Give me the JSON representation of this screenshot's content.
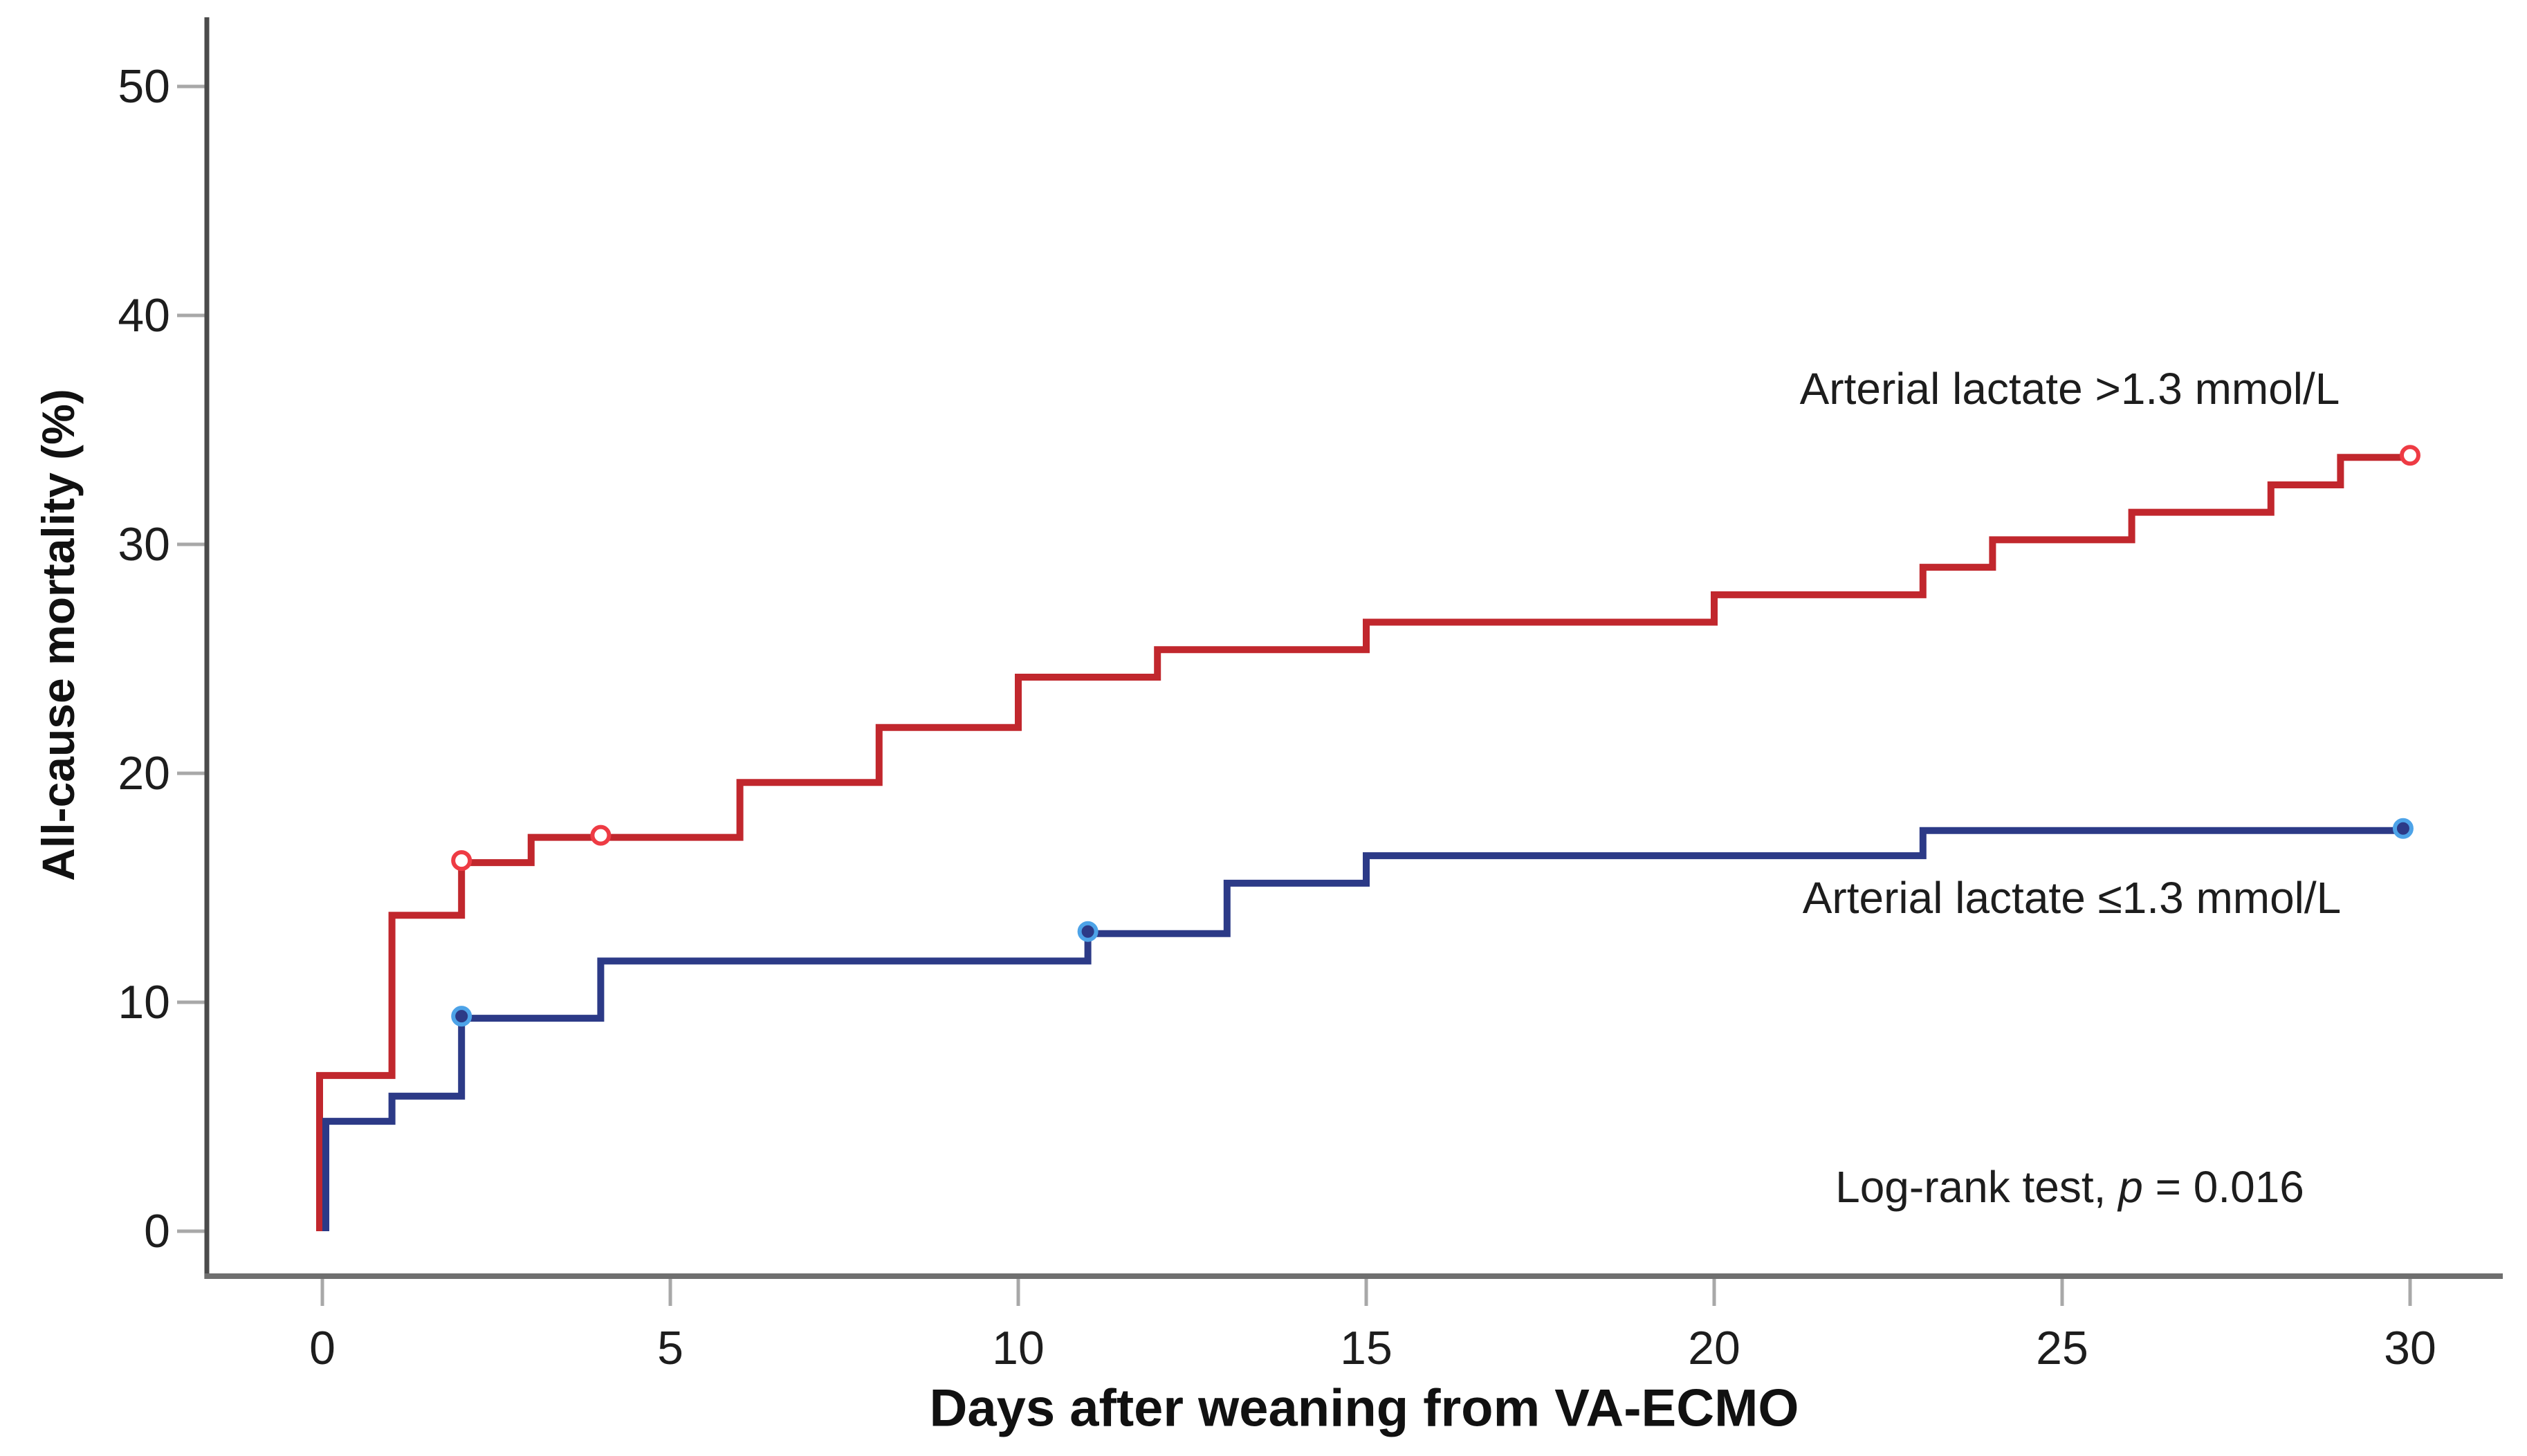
{
  "figure": {
    "background": "#ffffff",
    "text_color": "#1d1d1d",
    "axis_line_color": "#4b4b4b",
    "baseline_color": "#6f6f6f",
    "tick_color": "#a8a8a8"
  },
  "chart_data": {
    "type": "line",
    "subtype": "kaplan-meier-step",
    "title": "",
    "xlabel": "Days after weaning from VA-ECMO",
    "ylabel": "All-cause mortality (%)",
    "x_ticks": [
      "0",
      "5",
      "10",
      "15",
      "20",
      "25",
      "30"
    ],
    "x_tick_values": [
      0,
      5,
      10,
      15,
      20,
      25,
      30
    ],
    "y_ticks": [
      "0",
      "10",
      "20",
      "30",
      "40",
      "50"
    ],
    "y_tick_values": [
      0,
      10,
      20,
      30,
      40,
      50
    ],
    "xlim": [
      -1.7,
      31.7
    ],
    "ylim": [
      -2,
      52.7
    ],
    "grid": false,
    "legend_position": "inline-annotations",
    "series": [
      {
        "name": "Arterial lactate >1.3 mmol/L",
        "color": "#c1272d",
        "censor_stroke": "#ee3b44",
        "censor_fill": "#ffffff",
        "start": [
          0,
          0
        ],
        "steps": [
          [
            0,
            6.8
          ],
          [
            1,
            13.8
          ],
          [
            2,
            16.1
          ],
          [
            3,
            17.2
          ],
          [
            6,
            19.6
          ],
          [
            8,
            22.0
          ],
          [
            10,
            24.2
          ],
          [
            12,
            25.4
          ],
          [
            15,
            26.6
          ],
          [
            20,
            27.8
          ],
          [
            23,
            29.0
          ],
          [
            24,
            30.2
          ],
          [
            26,
            31.4
          ],
          [
            28,
            32.6
          ],
          [
            29,
            33.8
          ]
        ],
        "end_day": 30,
        "end_value": 33.8,
        "censor_marks": [
          [
            2,
            16.1
          ],
          [
            4,
            17.2
          ],
          [
            30,
            33.8
          ]
        ]
      },
      {
        "name": "Arterial lactate ≤1.3 mmol/L",
        "color": "#2c3a87",
        "censor_stroke": "#4da3e8",
        "censor_fill": "#2c3a87",
        "start": [
          0,
          0
        ],
        "steps": [
          [
            0,
            4.8
          ],
          [
            1,
            5.9
          ],
          [
            2,
            9.3
          ],
          [
            4,
            11.8
          ],
          [
            11,
            13.0
          ],
          [
            13,
            15.2
          ],
          [
            15,
            16.4
          ],
          [
            23,
            17.5
          ]
        ],
        "end_day": 29.9,
        "end_value": 17.5,
        "censor_marks": [
          [
            2,
            9.3
          ],
          [
            11,
            13.0
          ],
          [
            29.9,
            17.5
          ]
        ]
      }
    ],
    "annotation": {
      "prefix": "Log-rank test, ",
      "p_symbol": "p",
      "suffix": " = 0.016"
    }
  }
}
